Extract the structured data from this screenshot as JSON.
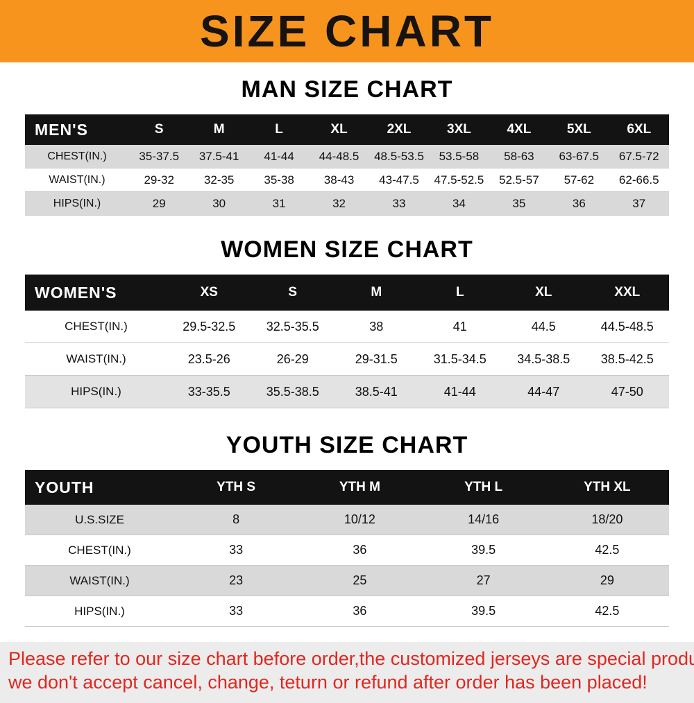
{
  "banner": {
    "title": "SIZE CHART"
  },
  "sections": {
    "man": {
      "title": "MAN SIZE CHART",
      "table": {
        "label": "MEN'S",
        "columns": [
          "S",
          "M",
          "L",
          "XL",
          "2XL",
          "3XL",
          "4XL",
          "5XL",
          "6XL"
        ],
        "rows": [
          {
            "label": "CHEST(IN.)",
            "values": [
              "35-37.5",
              "37.5-41",
              "41-44",
              "44-48.5",
              "48.5-53.5",
              "53.5-58",
              "58-63",
              "63-67.5",
              "67.5-72"
            ]
          },
          {
            "label": "WAIST(IN.)",
            "values": [
              "29-32",
              "32-35",
              "35-38",
              "38-43",
              "43-47.5",
              "47.5-52.5",
              "52.5-57",
              "57-62",
              "62-66.5"
            ]
          },
          {
            "label": "HIPS(IN.)",
            "values": [
              "29",
              "30",
              "31",
              "32",
              "33",
              "34",
              "35",
              "36",
              "37"
            ]
          }
        ]
      }
    },
    "women": {
      "title": "WOMEN SIZE CHART",
      "table": {
        "label": "WOMEN'S",
        "columns": [
          "XS",
          "S",
          "M",
          "L",
          "XL",
          "XXL"
        ],
        "rows": [
          {
            "label": "CHEST(IN.)",
            "values": [
              "29.5-32.5",
              "32.5-35.5",
              "38",
              "41",
              "44.5",
              "44.5-48.5"
            ]
          },
          {
            "label": "WAIST(IN.)",
            "values": [
              "23.5-26",
              "26-29",
              "29-31.5",
              "31.5-34.5",
              "34.5-38.5",
              "38.5-42.5"
            ]
          },
          {
            "label": "HIPS(IN.)",
            "values": [
              "33-35.5",
              "35.5-38.5",
              "38.5-41",
              "41-44",
              "44-47",
              "47-50"
            ]
          }
        ]
      }
    },
    "youth": {
      "title": "YOUTH SIZE CHART",
      "table": {
        "label": "YOUTH",
        "columns": [
          "YTH S",
          "YTH M",
          "YTH L",
          "YTH XL"
        ],
        "rows": [
          {
            "label": "U.S.SIZE",
            "values": [
              "8",
              "10/12",
              "14/16",
              "18/20"
            ]
          },
          {
            "label": "CHEST(IN.)",
            "values": [
              "33",
              "36",
              "39.5",
              "42.5"
            ]
          },
          {
            "label": "WAIST(IN.)",
            "values": [
              "23",
              "25",
              "27",
              "29"
            ]
          },
          {
            "label": "HIPS(IN.)",
            "values": [
              "33",
              "36",
              "39.5",
              "42.5"
            ]
          }
        ]
      }
    }
  },
  "notice": {
    "line1": "Please refer to our size chart before order,the customized jerseys are special products,",
    "line2": "we don't accept cancel, change, teturn or refund after order has been placed!"
  },
  "colors": {
    "banner_bg": "#f7941e",
    "table_header_bg": "#131313",
    "row_alt": "#d9d9d9",
    "notice_text": "#e02720",
    "notice_bg": "#ececec"
  }
}
